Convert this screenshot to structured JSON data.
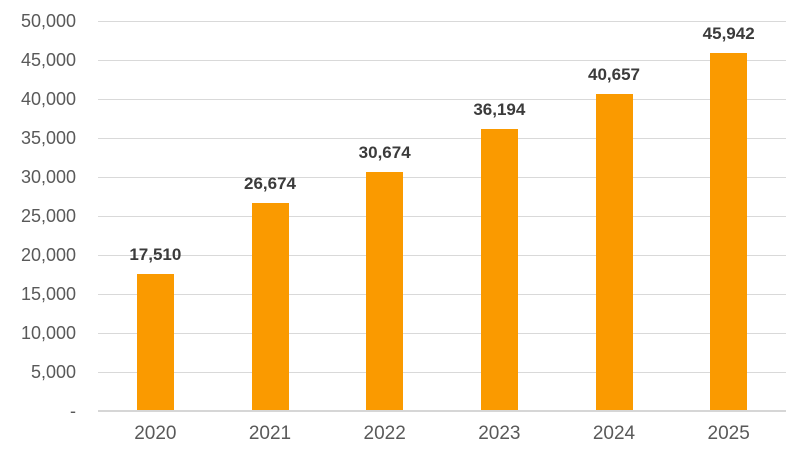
{
  "chart_data": {
    "type": "bar",
    "title": "",
    "xlabel": "",
    "ylabel": "",
    "categories": [
      "2020",
      "2021",
      "2022",
      "2023",
      "2024",
      "2025"
    ],
    "values": [
      17510,
      26674,
      30674,
      36194,
      40657,
      45942
    ],
    "value_labels": [
      "17,510",
      "26,674",
      "30,674",
      "36,194",
      "40,657",
      "45,942"
    ],
    "ylim": [
      0,
      50000
    ],
    "ytick_interval": 5000,
    "ytick_labels": [
      "-",
      "5,000",
      "10,000",
      "15,000",
      "20,000",
      "25,000",
      "30,000",
      "35,000",
      "40,000",
      "45,000",
      "50,000"
    ],
    "grid": true,
    "legend": false,
    "colors": {
      "bar": "#fa9a00",
      "gridline": "#d9d9d9",
      "axis_line": "#d6d6d6",
      "tick_label": "#595959",
      "data_label": "#3b3b3b"
    }
  }
}
